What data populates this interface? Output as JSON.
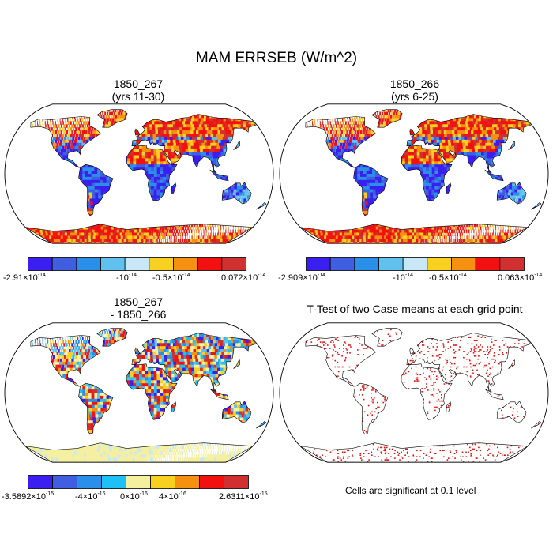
{
  "figure": {
    "title": "MAM ERRSEB (W/m^2)"
  },
  "panels": [
    {
      "id": "case1",
      "title_lines": [
        "1850_267",
        "(yrs 11-30)"
      ],
      "colorbar": {
        "colors": [
          "#3a1ff0",
          "#3f5fe0",
          "#2a8fe8",
          "#62c0ee",
          "#c8e8f8",
          "#f8d020",
          "#f59010",
          "#f21010",
          "#d03030"
        ],
        "labels": [
          "-2.91×10^-14",
          "-10^-14",
          "-0.5×10^-14",
          "0.072×10^-14"
        ]
      }
    },
    {
      "id": "case2",
      "title_lines": [
        "1850_266",
        "(yrs 6-25)"
      ],
      "colorbar": {
        "colors": [
          "#3a1ff0",
          "#3f5fe0",
          "#2a8fe8",
          "#62c0ee",
          "#c8e8f8",
          "#f8d020",
          "#f59010",
          "#f21010",
          "#d03030"
        ],
        "labels": [
          "-2.909×10^-14",
          "-10^-14",
          "-0.5×10^-14",
          "0.063×10^-14"
        ]
      }
    },
    {
      "id": "difference",
      "title_lines": [
        "1850_267",
        "- 1850_266"
      ],
      "colorbar": {
        "colors": [
          "#3a1ff0",
          "#3f5fe0",
          "#2a8fe8",
          "#1fc0f5",
          "#f5f0a0",
          "#f8d020",
          "#f59010",
          "#f21010",
          "#d03030"
        ],
        "labels": [
          "-3.5892×10^-15",
          "-4×10^-16",
          "0×10^-16",
          "4×10^-16",
          "2.6311×10^-15"
        ]
      }
    },
    {
      "id": "ttest",
      "title_lines": [
        "T-Test of two Case means at each grid point"
      ],
      "note": "Cells are significant at 0.1 level"
    }
  ]
}
